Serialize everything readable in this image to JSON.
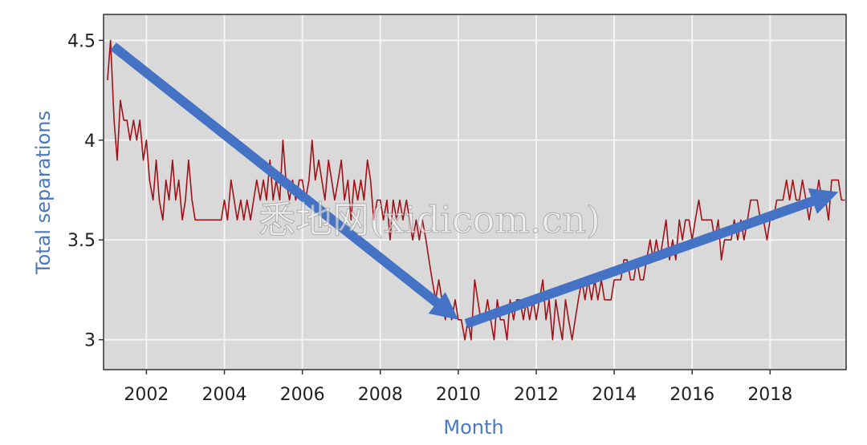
{
  "chart_data": {
    "type": "line",
    "xlabel": "Month",
    "ylabel": "Total separations",
    "xlim": [
      2000.9,
      2019.95
    ],
    "ylim": [
      2.85,
      4.63
    ],
    "x_ticks": [
      2002,
      2004,
      2006,
      2008,
      2010,
      2012,
      2014,
      2016,
      2018
    ],
    "y_ticks": [
      3,
      3.5,
      4,
      4.5
    ],
    "y_tick_labels": [
      "3",
      "3.5",
      "4",
      "4.5"
    ],
    "grid": true,
    "series": [
      {
        "color": "#a0121a",
        "points": [
          [
            2001.0,
            4.3
          ],
          [
            2001.08,
            4.5
          ],
          [
            2001.17,
            4.1
          ],
          [
            2001.25,
            3.9
          ],
          [
            2001.33,
            4.2
          ],
          [
            2001.42,
            4.1
          ],
          [
            2001.5,
            4.1
          ],
          [
            2001.58,
            4.0
          ],
          [
            2001.67,
            4.1
          ],
          [
            2001.75,
            4.0
          ],
          [
            2001.83,
            4.1
          ],
          [
            2001.92,
            3.9
          ],
          [
            2002.0,
            4.0
          ],
          [
            2002.08,
            3.8
          ],
          [
            2002.17,
            3.7
          ],
          [
            2002.25,
            3.9
          ],
          [
            2002.33,
            3.7
          ],
          [
            2002.42,
            3.6
          ],
          [
            2002.5,
            3.8
          ],
          [
            2002.58,
            3.7
          ],
          [
            2002.67,
            3.9
          ],
          [
            2002.75,
            3.7
          ],
          [
            2002.83,
            3.8
          ],
          [
            2002.92,
            3.6
          ],
          [
            2003.0,
            3.7
          ],
          [
            2003.08,
            3.9
          ],
          [
            2003.17,
            3.7
          ],
          [
            2003.25,
            3.6
          ],
          [
            2003.33,
            3.6
          ],
          [
            2003.42,
            3.6
          ],
          [
            2003.5,
            3.6
          ],
          [
            2003.58,
            3.6
          ],
          [
            2003.67,
            3.6
          ],
          [
            2003.75,
            3.6
          ],
          [
            2003.83,
            3.6
          ],
          [
            2003.92,
            3.6
          ],
          [
            2004.0,
            3.7
          ],
          [
            2004.08,
            3.6
          ],
          [
            2004.17,
            3.8
          ],
          [
            2004.25,
            3.7
          ],
          [
            2004.33,
            3.6
          ],
          [
            2004.42,
            3.7
          ],
          [
            2004.5,
            3.6
          ],
          [
            2004.58,
            3.7
          ],
          [
            2004.67,
            3.6
          ],
          [
            2004.75,
            3.7
          ],
          [
            2004.83,
            3.8
          ],
          [
            2004.92,
            3.7
          ],
          [
            2005.0,
            3.8
          ],
          [
            2005.08,
            3.7
          ],
          [
            2005.17,
            3.9
          ],
          [
            2005.25,
            3.7
          ],
          [
            2005.33,
            3.8
          ],
          [
            2005.42,
            3.7
          ],
          [
            2005.5,
            4.0
          ],
          [
            2005.58,
            3.8
          ],
          [
            2005.67,
            3.7
          ],
          [
            2005.75,
            3.8
          ],
          [
            2005.83,
            3.7
          ],
          [
            2005.92,
            3.8
          ],
          [
            2006.0,
            3.8
          ],
          [
            2006.08,
            3.7
          ],
          [
            2006.17,
            3.8
          ],
          [
            2006.25,
            4.0
          ],
          [
            2006.33,
            3.8
          ],
          [
            2006.42,
            3.9
          ],
          [
            2006.5,
            3.8
          ],
          [
            2006.58,
            3.7
          ],
          [
            2006.67,
            3.9
          ],
          [
            2006.75,
            3.8
          ],
          [
            2006.83,
            3.7
          ],
          [
            2006.92,
            3.8
          ],
          [
            2007.0,
            3.9
          ],
          [
            2007.08,
            3.7
          ],
          [
            2007.17,
            3.8
          ],
          [
            2007.25,
            3.6
          ],
          [
            2007.33,
            3.8
          ],
          [
            2007.42,
            3.7
          ],
          [
            2007.5,
            3.8
          ],
          [
            2007.58,
            3.7
          ],
          [
            2007.67,
            3.9
          ],
          [
            2007.75,
            3.8
          ],
          [
            2007.83,
            3.6
          ],
          [
            2007.92,
            3.7
          ],
          [
            2008.0,
            3.7
          ],
          [
            2008.08,
            3.6
          ],
          [
            2008.17,
            3.7
          ],
          [
            2008.25,
            3.5
          ],
          [
            2008.33,
            3.7
          ],
          [
            2008.42,
            3.6
          ],
          [
            2008.5,
            3.7
          ],
          [
            2008.58,
            3.6
          ],
          [
            2008.67,
            3.7
          ],
          [
            2008.75,
            3.6
          ],
          [
            2008.83,
            3.5
          ],
          [
            2008.92,
            3.6
          ],
          [
            2009.0,
            3.5
          ],
          [
            2009.08,
            3.6
          ],
          [
            2009.17,
            3.5
          ],
          [
            2009.25,
            3.4
          ],
          [
            2009.33,
            3.3
          ],
          [
            2009.42,
            3.2
          ],
          [
            2009.5,
            3.3
          ],
          [
            2009.58,
            3.2
          ],
          [
            2009.67,
            3.1
          ],
          [
            2009.75,
            3.2
          ],
          [
            2009.83,
            3.1
          ],
          [
            2009.92,
            3.2
          ],
          [
            2010.0,
            3.1
          ],
          [
            2010.08,
            3.1
          ],
          [
            2010.17,
            3.0
          ],
          [
            2010.25,
            3.1
          ],
          [
            2010.33,
            3.0
          ],
          [
            2010.42,
            3.3
          ],
          [
            2010.5,
            3.2
          ],
          [
            2010.58,
            3.1
          ],
          [
            2010.67,
            3.1
          ],
          [
            2010.75,
            3.2
          ],
          [
            2010.83,
            3.1
          ],
          [
            2010.92,
            3.0
          ],
          [
            2011.0,
            3.2
          ],
          [
            2011.08,
            3.1
          ],
          [
            2011.17,
            3.1
          ],
          [
            2011.25,
            3.0
          ],
          [
            2011.33,
            3.2
          ],
          [
            2011.42,
            3.1
          ],
          [
            2011.5,
            3.2
          ],
          [
            2011.58,
            3.2
          ],
          [
            2011.67,
            3.1
          ],
          [
            2011.75,
            3.2
          ],
          [
            2011.83,
            3.1
          ],
          [
            2011.92,
            3.2
          ],
          [
            2012.0,
            3.1
          ],
          [
            2012.08,
            3.2
          ],
          [
            2012.17,
            3.3
          ],
          [
            2012.25,
            3.1
          ],
          [
            2012.33,
            3.2
          ],
          [
            2012.42,
            3.0
          ],
          [
            2012.5,
            3.2
          ],
          [
            2012.58,
            3.1
          ],
          [
            2012.67,
            3.0
          ],
          [
            2012.75,
            3.2
          ],
          [
            2012.83,
            3.1
          ],
          [
            2012.92,
            3.0
          ],
          [
            2013.0,
            3.1
          ],
          [
            2013.08,
            3.2
          ],
          [
            2013.17,
            3.3
          ],
          [
            2013.25,
            3.2
          ],
          [
            2013.33,
            3.3
          ],
          [
            2013.42,
            3.2
          ],
          [
            2013.5,
            3.3
          ],
          [
            2013.58,
            3.2
          ],
          [
            2013.67,
            3.3
          ],
          [
            2013.75,
            3.2
          ],
          [
            2013.83,
            3.2
          ],
          [
            2013.92,
            3.2
          ],
          [
            2014.0,
            3.3
          ],
          [
            2014.08,
            3.3
          ],
          [
            2014.17,
            3.3
          ],
          [
            2014.25,
            3.4
          ],
          [
            2014.33,
            3.4
          ],
          [
            2014.42,
            3.3
          ],
          [
            2014.5,
            3.3
          ],
          [
            2014.58,
            3.4
          ],
          [
            2014.67,
            3.3
          ],
          [
            2014.75,
            3.3
          ],
          [
            2014.83,
            3.4
          ],
          [
            2014.92,
            3.5
          ],
          [
            2015.0,
            3.4
          ],
          [
            2015.08,
            3.5
          ],
          [
            2015.17,
            3.4
          ],
          [
            2015.25,
            3.5
          ],
          [
            2015.33,
            3.6
          ],
          [
            2015.42,
            3.4
          ],
          [
            2015.5,
            3.5
          ],
          [
            2015.58,
            3.4
          ],
          [
            2015.67,
            3.6
          ],
          [
            2015.75,
            3.5
          ],
          [
            2015.83,
            3.6
          ],
          [
            2015.92,
            3.6
          ],
          [
            2016.0,
            3.5
          ],
          [
            2016.08,
            3.6
          ],
          [
            2016.17,
            3.7
          ],
          [
            2016.25,
            3.6
          ],
          [
            2016.33,
            3.6
          ],
          [
            2016.42,
            3.6
          ],
          [
            2016.5,
            3.6
          ],
          [
            2016.58,
            3.5
          ],
          [
            2016.67,
            3.6
          ],
          [
            2016.75,
            3.4
          ],
          [
            2016.83,
            3.5
          ],
          [
            2016.92,
            3.5
          ],
          [
            2017.0,
            3.5
          ],
          [
            2017.08,
            3.6
          ],
          [
            2017.17,
            3.5
          ],
          [
            2017.25,
            3.6
          ],
          [
            2017.33,
            3.5
          ],
          [
            2017.42,
            3.6
          ],
          [
            2017.5,
            3.7
          ],
          [
            2017.58,
            3.7
          ],
          [
            2017.67,
            3.7
          ],
          [
            2017.75,
            3.6
          ],
          [
            2017.83,
            3.6
          ],
          [
            2017.92,
            3.5
          ],
          [
            2018.0,
            3.6
          ],
          [
            2018.08,
            3.6
          ],
          [
            2018.17,
            3.7
          ],
          [
            2018.25,
            3.7
          ],
          [
            2018.33,
            3.7
          ],
          [
            2018.42,
            3.8
          ],
          [
            2018.5,
            3.7
          ],
          [
            2018.58,
            3.8
          ],
          [
            2018.67,
            3.7
          ],
          [
            2018.75,
            3.7
          ],
          [
            2018.83,
            3.8
          ],
          [
            2018.92,
            3.7
          ],
          [
            2019.0,
            3.6
          ],
          [
            2019.08,
            3.7
          ],
          [
            2019.17,
            3.7
          ],
          [
            2019.25,
            3.8
          ],
          [
            2019.33,
            3.7
          ],
          [
            2019.42,
            3.7
          ],
          [
            2019.5,
            3.6
          ],
          [
            2019.58,
            3.8
          ],
          [
            2019.67,
            3.8
          ],
          [
            2019.75,
            3.8
          ],
          [
            2019.83,
            3.7
          ],
          [
            2019.92,
            3.7
          ]
        ]
      }
    ],
    "annotations": {
      "arrow_color": "#4472c4",
      "arrows": [
        {
          "from": [
            2001.15,
            4.47
          ],
          "to": [
            2010.0,
            3.1
          ]
        },
        {
          "from": [
            2010.2,
            3.08
          ],
          "to": [
            2019.75,
            3.74
          ]
        }
      ]
    }
  },
  "watermark": {
    "text": "悉地网(xidicom.cn)"
  },
  "colors": {
    "plot_background": "#d9d9d9",
    "grid": "#f4f4f4",
    "frame": "#333333",
    "axis_title": "#4a78c0"
  }
}
